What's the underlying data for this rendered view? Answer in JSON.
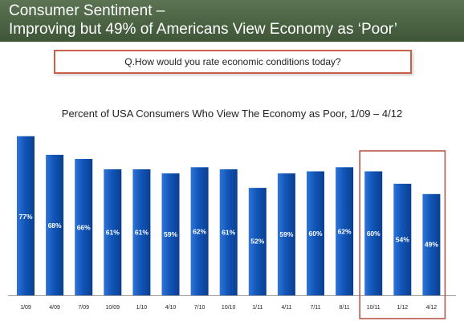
{
  "header": {
    "title_line1": "Consumer Sentiment –",
    "title_line2": "Improving but 49% of Americans View Economy as ‘Poor’"
  },
  "question": "Q.How would you rate economic conditions today?",
  "colors": {
    "header_bg": "#4b6343",
    "bar": "#1155b8",
    "highlight_box": "#b5564a",
    "question_border": "#c8604a"
  },
  "chart_data": {
    "type": "bar",
    "title": "Percent of USA Consumers Who View The Economy as Poor, 1/09 – 4/12",
    "xlabel": "",
    "ylabel": "",
    "ylim": [
      0,
      80
    ],
    "grid": false,
    "legend": "none",
    "categories": [
      "1/09",
      "4/09",
      "7/09",
      "10/09",
      "1/10",
      "4/10",
      "7/10",
      "10/10",
      "1/11",
      "4/11",
      "7/11",
      "8/11",
      "10/11",
      "1/12",
      "4/12"
    ],
    "values": [
      77,
      68,
      66,
      61,
      61,
      59,
      62,
      61,
      52,
      59,
      60,
      62,
      60,
      54,
      49
    ],
    "data_labels": [
      "77%",
      "68%",
      "66%",
      "61%",
      "61%",
      "59%",
      "62%",
      "61%",
      "52%",
      "59%",
      "60%",
      "62%",
      "60%",
      "54%",
      "49%"
    ],
    "highlighted_categories": [
      "10/11",
      "1/12",
      "4/12"
    ]
  }
}
